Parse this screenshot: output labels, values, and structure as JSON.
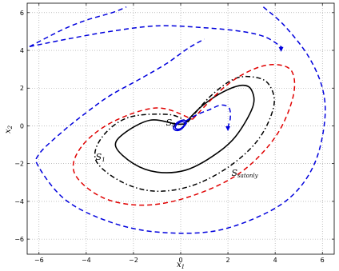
{
  "chart_data": {
    "type": "line",
    "title": "",
    "xlabel_main": "x",
    "xlabel_sub": "1",
    "ylabel_main": "x",
    "ylabel_sub": "2",
    "xlim": [
      -6.5,
      6.5
    ],
    "ylim": [
      -6.8,
      6.5
    ],
    "xticks": [
      -6,
      -4,
      -2,
      0,
      2,
      4,
      6
    ],
    "yticks": [
      -6,
      -4,
      -2,
      0,
      2,
      4,
      6
    ],
    "grid": true,
    "series": [
      {
        "style": "solid",
        "color": "#000000",
        "points": [
          [
            0.15,
            0.1
          ],
          [
            0.9,
            1.05
          ],
          [
            1.8,
            1.8
          ],
          [
            2.6,
            2.15
          ],
          [
            3.0,
            1.9
          ],
          [
            3.05,
            1.0
          ],
          [
            2.3,
            -0.6
          ],
          [
            1.3,
            -1.65
          ],
          [
            0.2,
            -2.35
          ],
          [
            -1.0,
            -2.45
          ],
          [
            -2.0,
            -2.0
          ],
          [
            -2.75,
            -1.1
          ],
          [
            -2.4,
            -0.4
          ],
          [
            -1.3,
            0.3
          ],
          [
            -0.2,
            0.1
          ],
          [
            0.15,
            0.1
          ]
        ]
      },
      {
        "style": "dashdot",
        "color": "#000000",
        "points": [
          [
            0.3,
            0.2
          ],
          [
            1.2,
            1.5
          ],
          [
            2.2,
            2.45
          ],
          [
            3.0,
            2.6
          ],
          [
            3.7,
            2.25
          ],
          [
            3.95,
            1.1
          ],
          [
            3.3,
            -0.7
          ],
          [
            2.0,
            -2.2
          ],
          [
            0.4,
            -3.2
          ],
          [
            -1.2,
            -3.45
          ],
          [
            -2.6,
            -2.9
          ],
          [
            -3.6,
            -1.8
          ],
          [
            -3.3,
            -0.55
          ],
          [
            -2.2,
            0.45
          ],
          [
            -0.5,
            0.6
          ],
          [
            0.3,
            0.2
          ]
        ]
      },
      {
        "style": "dashed",
        "color": "#e00000",
        "points": [
          [
            0.5,
            0.35
          ],
          [
            1.8,
            2.0
          ],
          [
            2.9,
            2.9
          ],
          [
            3.9,
            3.25
          ],
          [
            4.7,
            2.9
          ],
          [
            4.75,
            1.5
          ],
          [
            4.0,
            -0.6
          ],
          [
            2.5,
            -2.5
          ],
          [
            0.5,
            -3.7
          ],
          [
            -1.5,
            -4.2
          ],
          [
            -3.3,
            -3.8
          ],
          [
            -4.5,
            -2.5
          ],
          [
            -4.2,
            -1.1
          ],
          [
            -2.9,
            0.2
          ],
          [
            -1.0,
            0.95
          ],
          [
            0.5,
            0.35
          ]
        ]
      },
      {
        "style": "dashed",
        "color": "#0000dd",
        "points": [
          [
            -6.4,
            4.2
          ],
          [
            -5.0,
            5.1
          ],
          [
            -4.0,
            5.6
          ],
          [
            -2.9,
            6.0
          ],
          [
            -2.3,
            6.3
          ]
        ]
      },
      {
        "style": "dashed",
        "color": "#0000dd",
        "points": [
          [
            -6.4,
            4.2
          ],
          [
            -4.8,
            4.6
          ],
          [
            -3.0,
            5.0
          ],
          [
            -1.0,
            5.3
          ],
          [
            1.0,
            5.2
          ],
          [
            2.6,
            5.0
          ],
          [
            3.6,
            4.7
          ],
          [
            4.3,
            4.15
          ]
        ]
      },
      {
        "style": "dashed",
        "color": "#0000dd",
        "points": [
          [
            3.5,
            6.3
          ],
          [
            4.4,
            5.3
          ],
          [
            5.4,
            3.7
          ],
          [
            6.0,
            2.0
          ],
          [
            6.1,
            0.3
          ],
          [
            5.7,
            -1.9
          ],
          [
            4.8,
            -3.6
          ],
          [
            3.4,
            -4.75
          ],
          [
            1.3,
            -5.6
          ],
          [
            -1.2,
            -5.6
          ],
          [
            -3.2,
            -5.0
          ],
          [
            -4.9,
            -3.9
          ],
          [
            -6.0,
            -2.2
          ],
          [
            -6.0,
            -1.5
          ],
          [
            -5.0,
            -0.3
          ],
          [
            -4.0,
            0.7
          ],
          [
            -3.0,
            1.6
          ],
          [
            -1.7,
            2.5
          ],
          [
            -0.6,
            3.3
          ],
          [
            0.3,
            4.1
          ],
          [
            1.0,
            4.6
          ]
        ]
      },
      {
        "style": "dashed",
        "color": "#0000dd",
        "points": [
          [
            0.2,
            0.25
          ],
          [
            0.7,
            0.6
          ],
          [
            1.2,
            0.85
          ],
          [
            1.7,
            1.1
          ],
          [
            2.05,
            0.95
          ],
          [
            2.1,
            0.4
          ],
          [
            2.0,
            -0.05
          ]
        ]
      },
      {
        "style": "solid",
        "color": "#0000dd",
        "points": [
          [
            0.25,
            0.15
          ],
          [
            0.15,
            0.3
          ],
          [
            -0.05,
            0.25
          ],
          [
            -0.25,
            0.05
          ],
          [
            -0.3,
            -0.15
          ],
          [
            -0.15,
            -0.25
          ],
          [
            0.05,
            -0.15
          ],
          [
            0.25,
            0.15
          ]
        ]
      },
      {
        "style": "solid",
        "color": "#0000dd",
        "points": [
          [
            0.2,
            0.12
          ],
          [
            0.1,
            0.22
          ],
          [
            -0.05,
            0.18
          ],
          [
            -0.2,
            0.02
          ],
          [
            -0.22,
            -0.12
          ],
          [
            -0.1,
            -0.18
          ],
          [
            0.05,
            -0.1
          ],
          [
            0.2,
            0.12
          ]
        ]
      }
    ],
    "arrows": [
      {
        "x": 4.25,
        "y": 4.05,
        "color": "#0000dd"
      },
      {
        "x": 2.0,
        "y": -0.15,
        "color": "#0000dd"
      }
    ],
    "annotations": [
      {
        "main": "S",
        "sub": "0",
        "x": -0.62,
        "y": 0.02
      },
      {
        "main": "S",
        "sub": "1",
        "x": -3.6,
        "y": -1.8
      },
      {
        "main": "S",
        "sub": "satonly",
        "x": 2.15,
        "y": -2.65
      }
    ]
  }
}
